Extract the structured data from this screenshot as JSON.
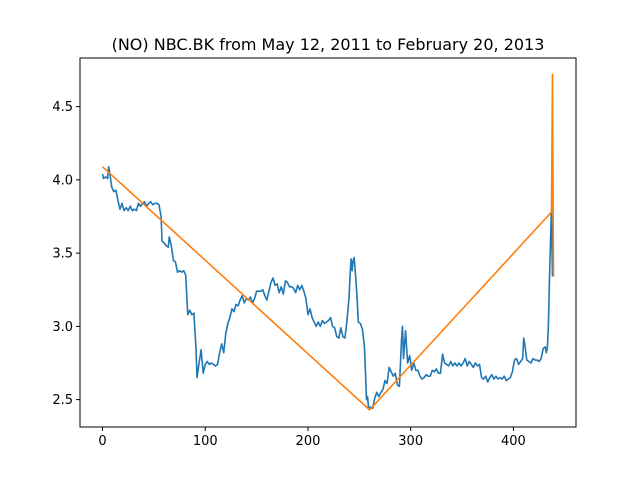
{
  "chart_data": {
    "type": "line",
    "title": "(NO) NBC.BK from May 12, 2011 to February 20, 2013",
    "xlabel": "",
    "ylabel": "",
    "xlim": [
      -21.9,
      460.9
    ],
    "ylim": [
      2.313,
      4.832
    ],
    "x_ticks": [
      0,
      100,
      200,
      300,
      400
    ],
    "y_ticks": [
      2.5,
      3.0,
      3.5,
      4.0,
      4.5
    ],
    "grid": false,
    "series": [
      {
        "color": "#1f77b4",
        "points": [
          [
            0,
            4.04
          ],
          [
            1,
            4.01
          ],
          [
            3,
            4.02
          ],
          [
            5,
            4.01
          ],
          [
            6,
            4.09
          ],
          [
            7,
            4.05
          ],
          [
            9,
            3.95
          ],
          [
            11,
            3.92
          ],
          [
            13,
            3.93
          ],
          [
            15,
            3.86
          ],
          [
            17,
            3.8
          ],
          [
            19,
            3.84
          ],
          [
            21,
            3.79
          ],
          [
            23,
            3.81
          ],
          [
            25,
            3.79
          ],
          [
            27,
            3.82
          ],
          [
            29,
            3.79
          ],
          [
            31,
            3.8
          ],
          [
            33,
            3.79
          ],
          [
            35,
            3.84
          ],
          [
            37,
            3.82
          ],
          [
            39,
            3.84
          ],
          [
            41,
            3.85
          ],
          [
            43,
            3.82
          ],
          [
            45,
            3.84
          ],
          [
            47,
            3.85
          ],
          [
            49,
            3.83
          ],
          [
            51,
            3.84
          ],
          [
            53,
            3.84
          ],
          [
            55,
            3.83
          ],
          [
            57,
            3.75
          ],
          [
            58,
            3.58
          ],
          [
            60,
            3.57
          ],
          [
            62,
            3.55
          ],
          [
            64,
            3.54
          ],
          [
            65,
            3.61
          ],
          [
            67,
            3.55
          ],
          [
            69,
            3.45
          ],
          [
            71,
            3.44
          ],
          [
            73,
            3.37
          ],
          [
            75,
            3.38
          ],
          [
            77,
            3.37
          ],
          [
            79,
            3.38
          ],
          [
            81,
            3.35
          ],
          [
            83,
            3.08
          ],
          [
            85,
            3.11
          ],
          [
            87,
            3.08
          ],
          [
            89,
            3.09
          ],
          [
            91,
            2.85
          ],
          [
            92,
            2.65
          ],
          [
            94,
            2.75
          ],
          [
            96,
            2.84
          ],
          [
            98,
            2.68
          ],
          [
            100,
            2.74
          ],
          [
            102,
            2.76
          ],
          [
            104,
            2.74
          ],
          [
            106,
            2.75
          ],
          [
            108,
            2.74
          ],
          [
            110,
            2.73
          ],
          [
            112,
            2.74
          ],
          [
            114,
            2.82
          ],
          [
            116,
            2.88
          ],
          [
            118,
            2.82
          ],
          [
            120,
            2.95
          ],
          [
            122,
            3.02
          ],
          [
            124,
            3.06
          ],
          [
            126,
            3.12
          ],
          [
            128,
            3.1
          ],
          [
            130,
            3.15
          ],
          [
            132,
            3.14
          ],
          [
            134,
            3.18
          ],
          [
            136,
            3.21
          ],
          [
            138,
            3.16
          ],
          [
            140,
            3.19
          ],
          [
            142,
            3.18
          ],
          [
            144,
            3.2
          ],
          [
            146,
            3.16
          ],
          [
            148,
            3.19
          ],
          [
            150,
            3.24
          ],
          [
            152,
            3.24
          ],
          [
            154,
            3.24
          ],
          [
            156,
            3.25
          ],
          [
            158,
            3.21
          ],
          [
            160,
            3.18
          ],
          [
            162,
            3.24
          ],
          [
            164,
            3.3
          ],
          [
            166,
            3.33
          ],
          [
            168,
            3.28
          ],
          [
            170,
            3.29
          ],
          [
            172,
            3.23
          ],
          [
            174,
            3.27
          ],
          [
            176,
            3.22
          ],
          [
            178,
            3.31
          ],
          [
            180,
            3.3
          ],
          [
            182,
            3.27
          ],
          [
            184,
            3.27
          ],
          [
            186,
            3.26
          ],
          [
            188,
            3.23
          ],
          [
            190,
            3.28
          ],
          [
            192,
            3.25
          ],
          [
            194,
            3.28
          ],
          [
            196,
            3.24
          ],
          [
            198,
            3.19
          ],
          [
            200,
            3.08
          ],
          [
            202,
            3.12
          ],
          [
            204,
            3.06
          ],
          [
            206,
            3.03
          ],
          [
            208,
            3.0
          ],
          [
            210,
            3.03
          ],
          [
            212,
            3.0
          ],
          [
            214,
            3.04
          ],
          [
            216,
            3.02
          ],
          [
            218,
            3.03
          ],
          [
            220,
            3.04
          ],
          [
            222,
            3.06
          ],
          [
            224,
            3.0
          ],
          [
            226,
            2.99
          ],
          [
            228,
            2.93
          ],
          [
            230,
            2.92
          ],
          [
            232,
            2.99
          ],
          [
            234,
            2.93
          ],
          [
            236,
            2.92
          ],
          [
            238,
            3.04
          ],
          [
            240,
            3.2
          ],
          [
            241,
            3.35
          ],
          [
            242,
            3.46
          ],
          [
            243,
            3.38
          ],
          [
            244,
            3.45
          ],
          [
            245,
            3.47
          ],
          [
            246,
            3.38
          ],
          [
            247,
            3.28
          ],
          [
            248,
            3.17
          ],
          [
            249,
            3.03
          ],
          [
            251,
            3.02
          ],
          [
            253,
            2.98
          ],
          [
            255,
            2.86
          ],
          [
            257,
            2.5
          ],
          [
            258,
            2.52
          ],
          [
            259,
            2.44
          ],
          [
            261,
            2.45
          ],
          [
            263,
            2.44
          ],
          [
            265,
            2.51
          ],
          [
            267,
            2.55
          ],
          [
            269,
            2.52
          ],
          [
            271,
            2.55
          ],
          [
            273,
            2.57
          ],
          [
            275,
            2.63
          ],
          [
            277,
            2.61
          ],
          [
            279,
            2.72
          ],
          [
            281,
            2.69
          ],
          [
            283,
            2.66
          ],
          [
            285,
            2.68
          ],
          [
            287,
            2.6
          ],
          [
            289,
            2.59
          ],
          [
            290,
            2.74
          ],
          [
            291,
            2.9
          ],
          [
            292,
            3.0
          ],
          [
            293,
            2.78
          ],
          [
            295,
            2.97
          ],
          [
            297,
            2.75
          ],
          [
            299,
            2.8
          ],
          [
            301,
            2.7
          ],
          [
            303,
            2.75
          ],
          [
            305,
            2.7
          ],
          [
            307,
            2.7
          ],
          [
            309,
            2.66
          ],
          [
            311,
            2.64
          ],
          [
            313,
            2.65
          ],
          [
            315,
            2.67
          ],
          [
            317,
            2.66
          ],
          [
            319,
            2.66
          ],
          [
            321,
            2.7
          ],
          [
            323,
            2.69
          ],
          [
            325,
            2.71
          ],
          [
            327,
            2.68
          ],
          [
            329,
            2.68
          ],
          [
            331,
            2.81
          ],
          [
            333,
            2.75
          ],
          [
            335,
            2.74
          ],
          [
            337,
            2.73
          ],
          [
            339,
            2.76
          ],
          [
            341,
            2.73
          ],
          [
            343,
            2.75
          ],
          [
            345,
            2.73
          ],
          [
            347,
            2.75
          ],
          [
            349,
            2.73
          ],
          [
            351,
            2.75
          ],
          [
            353,
            2.78
          ],
          [
            355,
            2.73
          ],
          [
            357,
            2.76
          ],
          [
            359,
            2.74
          ],
          [
            361,
            2.72
          ],
          [
            363,
            2.75
          ],
          [
            365,
            2.73
          ],
          [
            367,
            2.74
          ],
          [
            369,
            2.65
          ],
          [
            371,
            2.64
          ],
          [
            373,
            2.66
          ],
          [
            375,
            2.62
          ],
          [
            377,
            2.65
          ],
          [
            379,
            2.67
          ],
          [
            381,
            2.64
          ],
          [
            383,
            2.66
          ],
          [
            385,
            2.64
          ],
          [
            387,
            2.65
          ],
          [
            389,
            2.64
          ],
          [
            391,
            2.66
          ],
          [
            393,
            2.63
          ],
          [
            395,
            2.64
          ],
          [
            397,
            2.65
          ],
          [
            399,
            2.69
          ],
          [
            401,
            2.77
          ],
          [
            403,
            2.78
          ],
          [
            405,
            2.74
          ],
          [
            407,
            2.76
          ],
          [
            409,
            2.78
          ],
          [
            410,
            2.92
          ],
          [
            411,
            2.88
          ],
          [
            413,
            2.77
          ],
          [
            415,
            2.76
          ],
          [
            417,
            2.75
          ],
          [
            419,
            2.78
          ],
          [
            421,
            2.77
          ],
          [
            423,
            2.77
          ],
          [
            425,
            2.76
          ],
          [
            427,
            2.78
          ],
          [
            429,
            2.85
          ],
          [
            431,
            2.86
          ],
          [
            432,
            2.82
          ],
          [
            433,
            2.85
          ],
          [
            434,
            3.0
          ],
          [
            435,
            3.3
          ],
          [
            436,
            3.55
          ],
          [
            437,
            3.8
          ],
          [
            438,
            3.34
          ]
        ]
      },
      {
        "color": "#ff7f0e",
        "points": [
          [
            0,
            4.09
          ],
          [
            260,
            2.43
          ],
          [
            437,
            3.78
          ],
          [
            438,
            4.72
          ],
          [
            439,
            3.34
          ]
        ]
      }
    ]
  }
}
